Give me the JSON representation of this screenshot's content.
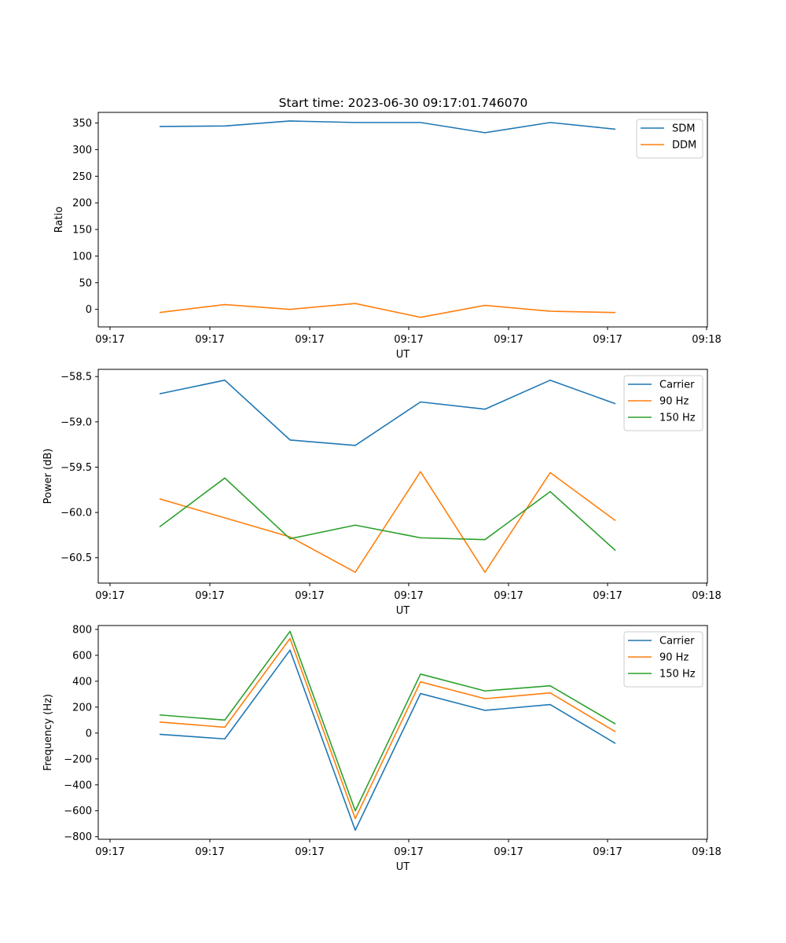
{
  "title": "Start time: 2023-06-30 09:17:01.746070",
  "colors": {
    "blue": "#1f77b4",
    "orange": "#ff7f0e",
    "green": "#2ca02c"
  },
  "chart_data": [
    {
      "type": "line",
      "ylabel": "Ratio",
      "xlabel": "UT",
      "x_tick_labels": [
        "09:17",
        "09:17",
        "09:17",
        "09:17",
        "09:17",
        "09:17",
        "09:18"
      ],
      "y_ticks": [
        0,
        50,
        100,
        150,
        200,
        250,
        300,
        350
      ],
      "ylim": [
        -33,
        370
      ],
      "legend_position": "top-right",
      "series": [
        {
          "name": "SDM",
          "color": "#1f77b4",
          "values": [
            343.5,
            344.5,
            353.8,
            351,
            351,
            331.8,
            351,
            338.4
          ]
        },
        {
          "name": "DDM",
          "color": "#ff7f0e",
          "values": [
            -6,
            9,
            0,
            11,
            -15,
            7.5,
            -3.5,
            -6
          ]
        }
      ]
    },
    {
      "type": "line",
      "ylabel": "Power (dB)",
      "xlabel": "UT",
      "x_tick_labels": [
        "09:17",
        "09:17",
        "09:17",
        "09:17",
        "09:17",
        "09:17",
        "09:18"
      ],
      "y_ticks": [
        -58.5,
        -59.0,
        -59.5,
        -60.0,
        -60.5
      ],
      "y_tick_labels": [
        "−58.5",
        "−59.0",
        "−59.5",
        "−60.0",
        "−60.5"
      ],
      "ylim": [
        -60.78,
        -58.42
      ],
      "legend_position": "top-right",
      "series": [
        {
          "name": "Carrier",
          "color": "#1f77b4",
          "values": [
            -58.69,
            -58.54,
            -59.2,
            -59.26,
            -58.78,
            -58.86,
            -58.54,
            -58.8
          ]
        },
        {
          "name": "90 Hz",
          "color": "#ff7f0e",
          "values": [
            -59.85,
            -60.06,
            -60.27,
            -60.66,
            -59.55,
            -60.66,
            -59.56,
            -60.09
          ]
        },
        {
          "name": "150 Hz",
          "color": "#2ca02c",
          "values": [
            -60.16,
            -59.62,
            -60.29,
            -60.14,
            -60.28,
            -60.3,
            -59.77,
            -60.42
          ]
        }
      ]
    },
    {
      "type": "line",
      "ylabel": "Frequency (Hz)",
      "xlabel": "UT",
      "x_tick_labels": [
        "09:17",
        "09:17",
        "09:17",
        "09:17",
        "09:17",
        "09:17",
        "09:18"
      ],
      "y_ticks": [
        800,
        600,
        400,
        200,
        0,
        -200,
        -400,
        -600,
        -800
      ],
      "y_tick_labels": [
        "800",
        "600",
        "400",
        "200",
        "0",
        "−200",
        "−400",
        "−600",
        "−800"
      ],
      "ylim": [
        -820,
        830
      ],
      "legend_position": "top-right",
      "series": [
        {
          "name": "Carrier",
          "color": "#1f77b4",
          "values": [
            -10,
            -45,
            640,
            -750,
            305,
            175,
            220,
            -80
          ]
        },
        {
          "name": "90 Hz",
          "color": "#ff7f0e",
          "values": [
            85,
            45,
            730,
            -660,
            395,
            265,
            310,
            10
          ]
        },
        {
          "name": "150 Hz",
          "color": "#2ca02c",
          "values": [
            140,
            100,
            785,
            -600,
            455,
            325,
            365,
            70
          ]
        }
      ]
    }
  ]
}
